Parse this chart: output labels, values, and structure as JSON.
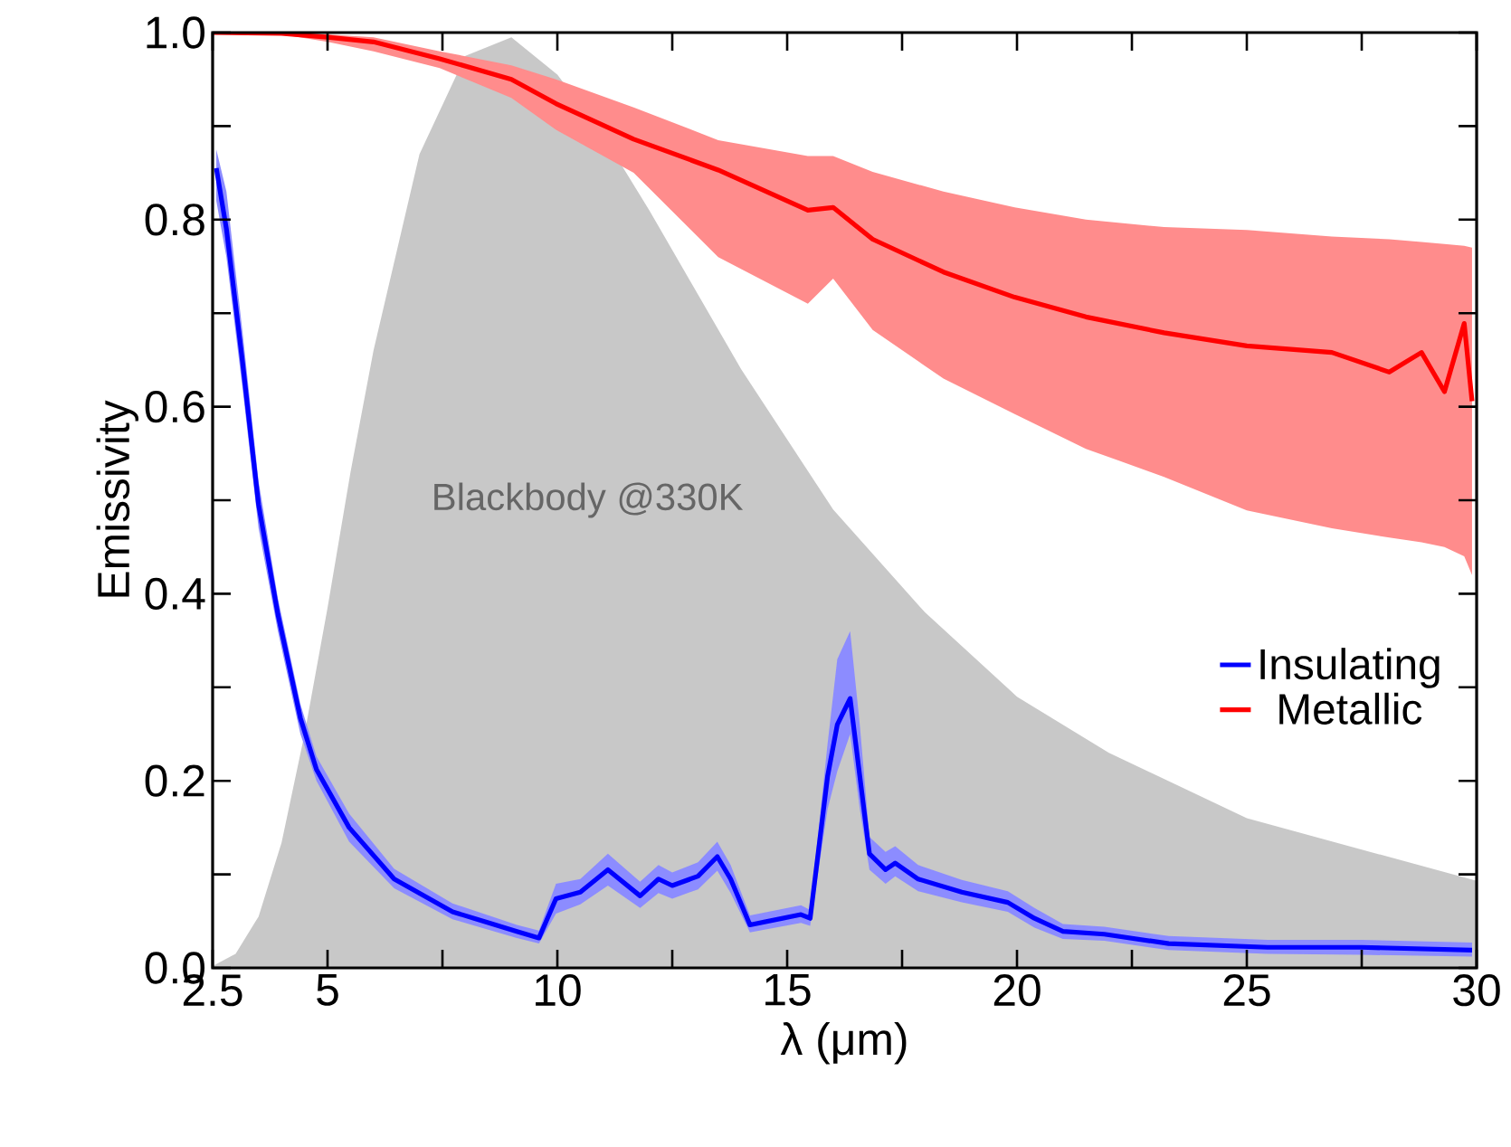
{
  "chart_data": {
    "type": "line",
    "xlabel": "λ (μm)",
    "ylabel": "Emissivity",
    "xlim": [
      2.5,
      30
    ],
    "ylim": [
      0,
      1
    ],
    "xticks": [
      2.5,
      5,
      {
        "value": 7.5,
        "label": null
      },
      10,
      {
        "value": 12.5,
        "label": null
      },
      15,
      {
        "value": 17.5,
        "label": null
      },
      20,
      {
        "value": 22.5,
        "label": null
      },
      25,
      {
        "value": 27.5,
        "label": null
      },
      30
    ],
    "yticks": [
      {
        "value": 0,
        "label": "0.0"
      },
      {
        "value": 0.1,
        "label": null
      },
      {
        "value": 0.2,
        "label": "0.2"
      },
      {
        "value": 0.3,
        "label": null
      },
      {
        "value": 0.4,
        "label": "0.4"
      },
      {
        "value": 0.5,
        "label": null
      },
      {
        "value": 0.6,
        "label": "0.6"
      },
      {
        "value": 0.7,
        "label": null
      },
      {
        "value": 0.8,
        "label": "0.8"
      },
      {
        "value": 0.9,
        "label": null
      },
      {
        "value": 1.0,
        "label": "1.0"
      }
    ],
    "legend": "right",
    "series": [
      {
        "type": "area",
        "name": "Blackbody @330K",
        "color": "#c8c8c8",
        "x": [
          2.5,
          3,
          3.5,
          4,
          4.5,
          5,
          5.5,
          6,
          7,
          8,
          9,
          10,
          11,
          12,
          14,
          16,
          18,
          20,
          22,
          25,
          30
        ],
        "values": [
          0.002,
          0.015,
          0.055,
          0.134,
          0.25,
          0.385,
          0.53,
          0.66,
          0.87,
          0.975,
          0.995,
          0.955,
          0.89,
          0.81,
          0.64,
          0.49,
          0.38,
          0.29,
          0.23,
          0.16,
          0.093
        ]
      },
      {
        "name": "Insulating",
        "color": "#0000ff",
        "x": [
          2.58,
          2.8,
          3.15,
          3.5,
          3.92,
          4.41,
          4.76,
          5.47,
          6.45,
          7.72,
          9.12,
          9.6,
          9.97,
          10.5,
          11.1,
          11.8,
          12.2,
          12.5,
          13.06,
          13.48,
          13.77,
          14.19,
          15.3,
          15.5,
          15.88,
          16.09,
          16.37,
          16.58,
          16.79,
          17.14,
          17.35,
          17.85,
          18.8,
          19.8,
          20.38,
          21.0,
          21.9,
          23.3,
          25.45,
          27.5,
          29.9
        ],
        "values": [
          0.855,
          0.79,
          0.648,
          0.495,
          0.378,
          0.267,
          0.212,
          0.15,
          0.095,
          0.06,
          0.039,
          0.032,
          0.074,
          0.081,
          0.105,
          0.077,
          0.095,
          0.088,
          0.098,
          0.119,
          0.095,
          0.046,
          0.057,
          0.053,
          0.205,
          0.26,
          0.288,
          0.205,
          0.122,
          0.105,
          0.112,
          0.095,
          0.081,
          0.07,
          0.053,
          0.039,
          0.036,
          0.026,
          0.022,
          0.022,
          0.019
        ],
        "lower": [
          0.82,
          0.76,
          0.62,
          0.47,
          0.36,
          0.25,
          0.2,
          0.135,
          0.085,
          0.052,
          0.032,
          0.026,
          0.058,
          0.068,
          0.088,
          0.064,
          0.08,
          0.074,
          0.084,
          0.104,
          0.08,
          0.038,
          0.048,
          0.045,
          0.17,
          0.21,
          0.25,
          0.17,
          0.105,
          0.09,
          0.098,
          0.082,
          0.07,
          0.06,
          0.043,
          0.031,
          0.029,
          0.019,
          0.015,
          0.014,
          0.012
        ],
        "upper": [
          0.875,
          0.83,
          0.68,
          0.52,
          0.395,
          0.282,
          0.226,
          0.165,
          0.106,
          0.069,
          0.046,
          0.04,
          0.09,
          0.095,
          0.122,
          0.092,
          0.11,
          0.102,
          0.113,
          0.135,
          0.11,
          0.056,
          0.067,
          0.062,
          0.24,
          0.33,
          0.36,
          0.26,
          0.14,
          0.124,
          0.13,
          0.11,
          0.094,
          0.082,
          0.064,
          0.047,
          0.044,
          0.034,
          0.03,
          0.03,
          0.027
        ]
      },
      {
        "name": "Metallic",
        "color": "#ff0000",
        "x": [
          2.5,
          4,
          5,
          6,
          7.44,
          9,
          9.97,
          11.66,
          13.5,
          15.45,
          16.0,
          16.86,
          18.4,
          19.95,
          21.5,
          23.2,
          25.0,
          26.85,
          28.1,
          28.8,
          29.3,
          29.73,
          29.9
        ],
        "values": [
          1.0,
          0.999,
          0.995,
          0.99,
          0.972,
          0.95,
          0.924,
          0.886,
          0.853,
          0.81,
          0.813,
          0.779,
          0.744,
          0.717,
          0.696,
          0.679,
          0.665,
          0.658,
          0.637,
          0.658,
          0.616,
          0.689,
          0.606
        ],
        "lower": [
          1.0,
          0.998,
          0.99,
          0.98,
          0.962,
          0.93,
          0.896,
          0.85,
          0.76,
          0.71,
          0.737,
          0.682,
          0.63,
          0.592,
          0.555,
          0.525,
          0.489,
          0.47,
          0.46,
          0.455,
          0.45,
          0.44,
          0.42
        ],
        "upper": [
          1.0,
          1.0,
          0.998,
          0.995,
          0.98,
          0.965,
          0.95,
          0.92,
          0.885,
          0.868,
          0.868,
          0.851,
          0.83,
          0.813,
          0.8,
          0.792,
          0.789,
          0.782,
          0.779,
          0.776,
          0.774,
          0.772,
          0.77
        ]
      }
    ]
  }
}
